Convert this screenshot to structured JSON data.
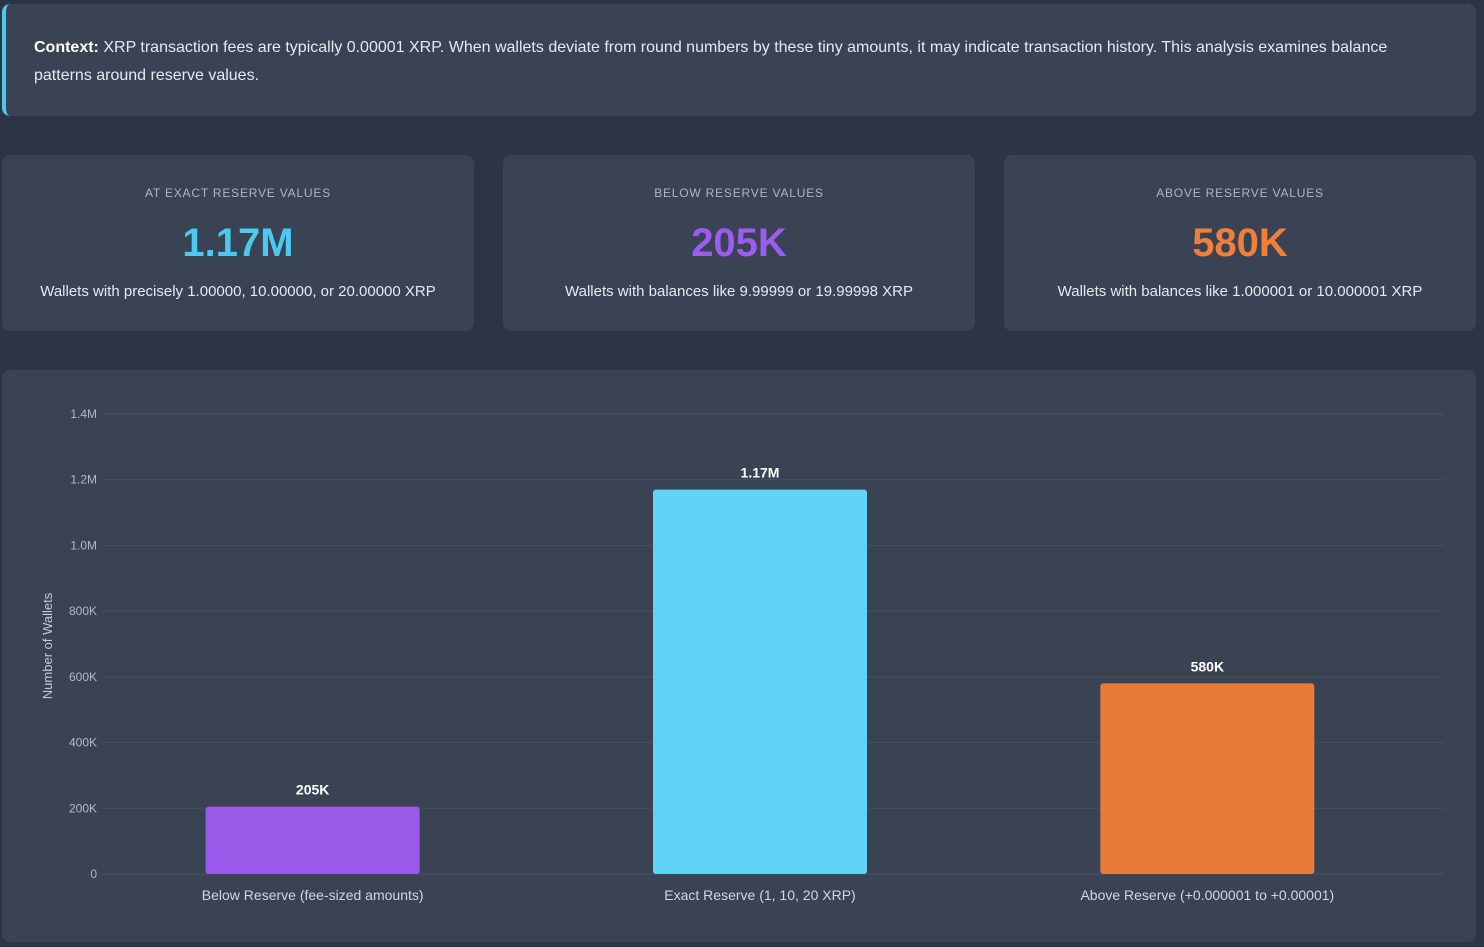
{
  "context": {
    "label": "Context:",
    "text": " XRP transaction fees are typically 0.00001 XRP. When wallets deviate from round numbers by these tiny amounts, it may indicate transaction history. This analysis examines balance patterns around reserve values."
  },
  "cards": [
    {
      "label": "AT EXACT RESERVE VALUES",
      "value": "1.17M",
      "desc": "Wallets with precisely 1.00000, 10.00000, or 20.00000 XRP",
      "color": "#4cc9f0"
    },
    {
      "label": "BELOW RESERVE VALUES",
      "value": "205K",
      "desc": "Wallets with balances like 9.99999 or 19.99998 XRP",
      "color": "#9d5cf0"
    },
    {
      "label": "ABOVE RESERVE VALUES",
      "value": "580K",
      "desc": "Wallets with balances like 1.000001 or 10.000001 XRP",
      "color": "#f07f3a"
    }
  ],
  "chart_data": {
    "type": "bar",
    "categories": [
      "Below Reserve (fee-sized amounts)",
      "Exact Reserve (1, 10, 20 XRP)",
      "Above Reserve (+0.000001 to +0.00001)"
    ],
    "values": [
      205000,
      1170000,
      580000
    ],
    "data_labels": [
      "205K",
      "1.17M",
      "580K"
    ],
    "colors": [
      "#9b59ea",
      "#5fd4f7",
      "#e67c38"
    ],
    "ylabel": "Number of Wallets",
    "xlabel": "",
    "ylim": [
      0,
      1400000
    ],
    "yticks": [
      0,
      200000,
      400000,
      600000,
      800000,
      1000000,
      1200000,
      1400000
    ],
    "ytick_labels": [
      "0",
      "200K",
      "400K",
      "600K",
      "800K",
      "1.0M",
      "1.2M",
      "1.4M"
    ],
    "grid": true,
    "legend": "none"
  }
}
